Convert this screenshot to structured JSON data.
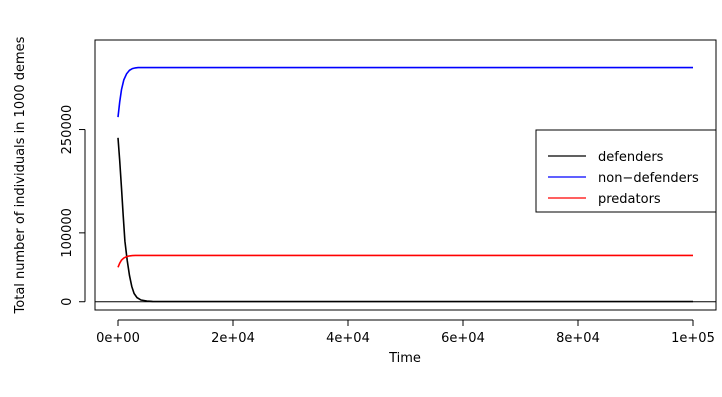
{
  "chart_data": {
    "type": "line",
    "title": "",
    "xlabel": "Time",
    "ylabel": "Total number of individuals in 1000 demes",
    "xlim": [
      -4000,
      104000
    ],
    "ylim": [
      -12000,
      380000
    ],
    "x_ticks": [
      0,
      20000,
      40000,
      60000,
      80000,
      100000
    ],
    "x_tick_labels": [
      "0e+00",
      "2e+04",
      "4e+04",
      "6e+04",
      "8e+04",
      "1e+05"
    ],
    "y_ticks": [
      0,
      100000,
      250000
    ],
    "y_tick_labels": [
      "0",
      "100000",
      "250000"
    ],
    "reference_line_y": 0,
    "legend_position": "right",
    "series": [
      {
        "name": "defenders",
        "color": "#000000",
        "x": [
          0,
          300,
          600,
          900,
          1200,
          1600,
          2000,
          2400,
          2800,
          3300,
          4000,
          5000,
          6000,
          10000,
          20000,
          40000,
          60000,
          80000,
          100000
        ],
        "y": [
          238000,
          205000,
          165000,
          125000,
          88000,
          60000,
          38000,
          22000,
          12000,
          6000,
          2500,
          1000,
          500,
          300,
          300,
          300,
          300,
          300,
          300
        ]
      },
      {
        "name": "non−defenders",
        "color": "#0000ff",
        "x": [
          0,
          300,
          600,
          1000,
          1500,
          2000,
          2500,
          3000,
          3500,
          4000,
          5000,
          7000,
          10000,
          20000,
          40000,
          60000,
          80000,
          100000
        ],
        "y": [
          268000,
          290000,
          308000,
          322000,
          331000,
          336000,
          338500,
          339500,
          340000,
          340000,
          340000,
          340000,
          340000,
          340000,
          340000,
          340000,
          340000,
          340000
        ]
      },
      {
        "name": "predators",
        "color": "#ff0000",
        "x": [
          0,
          300,
          600,
          1000,
          1500,
          2000,
          2500,
          3000,
          4000,
          5000,
          7000,
          10000,
          20000,
          40000,
          60000,
          80000,
          100000
        ],
        "y": [
          50000,
          56000,
          60500,
          63500,
          65500,
          66500,
          67000,
          67200,
          67300,
          67300,
          67300,
          67300,
          67300,
          67300,
          67300,
          67300,
          67300
        ]
      }
    ]
  }
}
